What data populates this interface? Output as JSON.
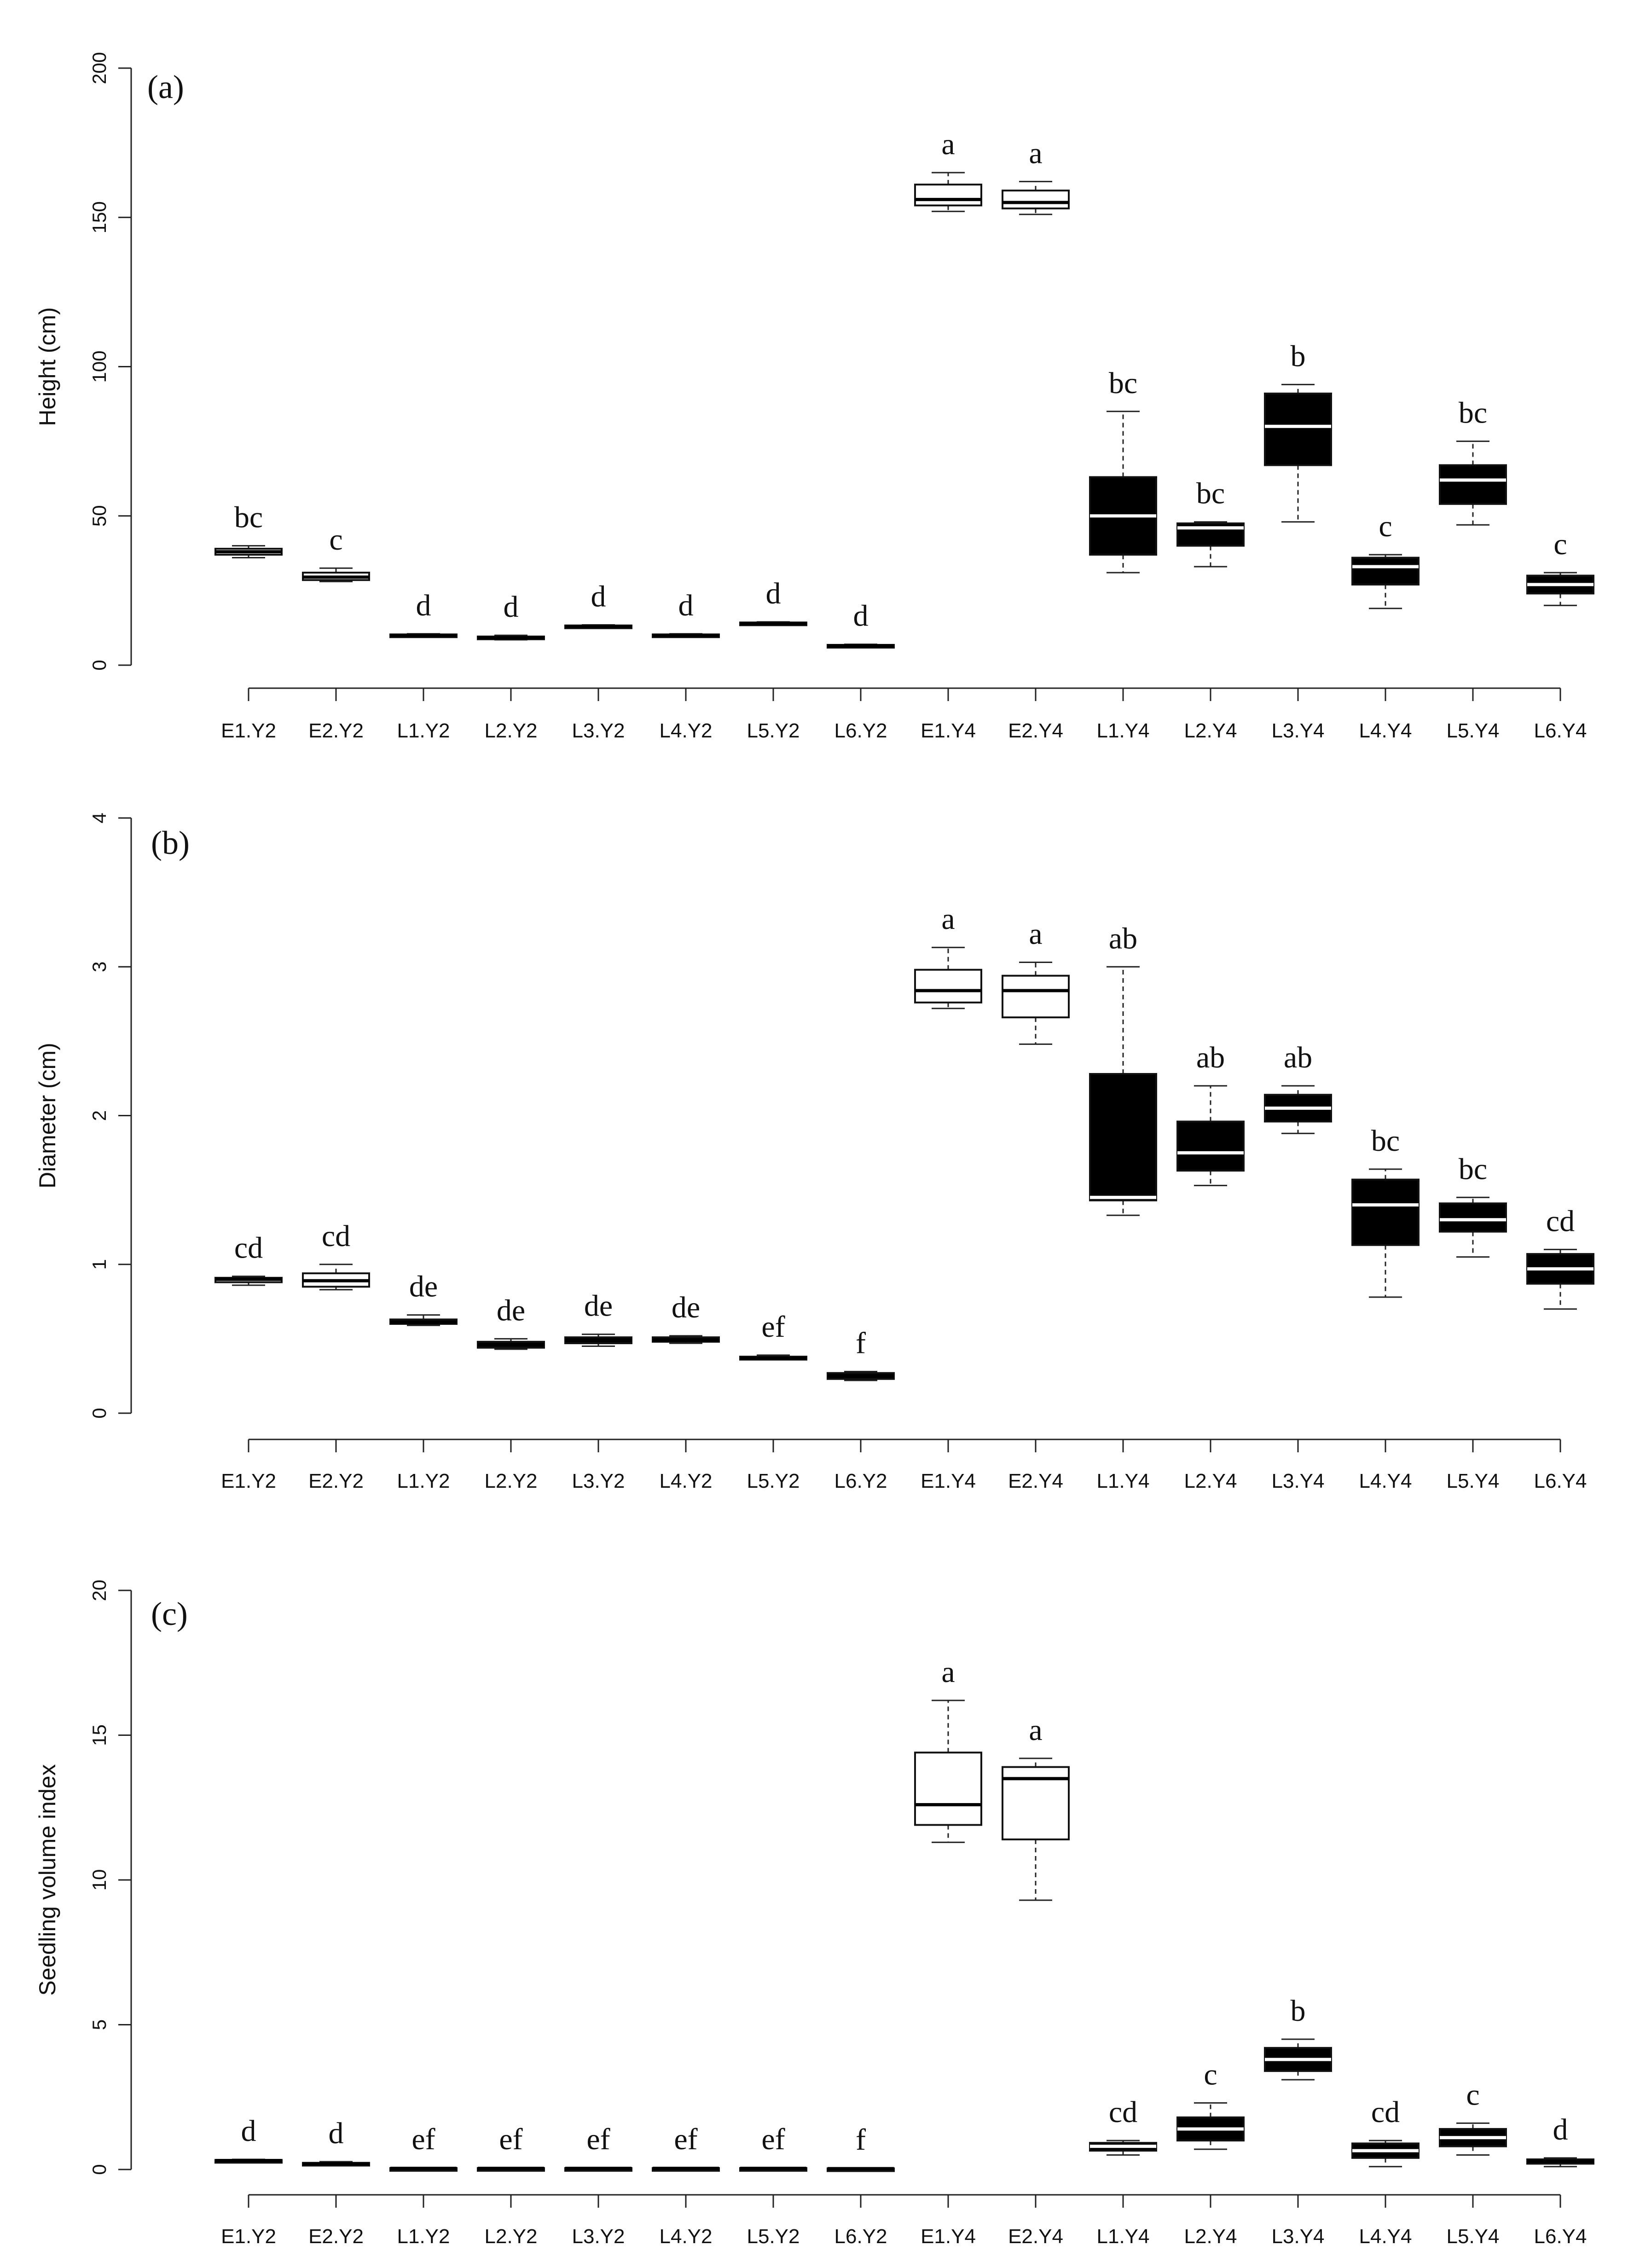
{
  "figure": {
    "description_free": true
  },
  "chart_data": [
    {
      "type": "box",
      "panel_label": "(a)",
      "ylabel": "Height (cm)",
      "ylim": [
        0,
        200
      ],
      "yticks": [
        0,
        50,
        100,
        150,
        200
      ],
      "categories": [
        "E1.Y2",
        "E2.Y2",
        "L1.Y2",
        "L2.Y2",
        "L3.Y2",
        "L4.Y2",
        "L5.Y2",
        "L6.Y2",
        "E1.Y4",
        "E2.Y4",
        "L1.Y4",
        "L2.Y4",
        "L3.Y4",
        "L4.Y4",
        "L5.Y4",
        "L6.Y4"
      ],
      "fills": [
        "white",
        "white",
        "black",
        "black",
        "black",
        "black",
        "black",
        "black",
        "white",
        "white",
        "black",
        "black",
        "black",
        "black",
        "black",
        "black"
      ],
      "boxes": [
        {
          "min": 36,
          "q1": 37,
          "median": 38,
          "q3": 39,
          "max": 40
        },
        {
          "min": 28,
          "q1": 28.5,
          "median": 29.5,
          "q3": 31,
          "max": 32.5
        },
        {
          "min": 9.5,
          "q1": 9.7,
          "median": 10,
          "q3": 10.3,
          "max": 10.5
        },
        {
          "min": 8.5,
          "q1": 8.8,
          "median": 9.2,
          "q3": 9.6,
          "max": 10
        },
        {
          "min": 12.5,
          "q1": 12.8,
          "median": 13,
          "q3": 13.3,
          "max": 13.5
        },
        {
          "min": 9.5,
          "q1": 9.7,
          "median": 10,
          "q3": 10.3,
          "max": 10.5
        },
        {
          "min": 13.5,
          "q1": 13.8,
          "median": 14,
          "q3": 14.3,
          "max": 14.5
        },
        {
          "min": 6,
          "q1": 6.2,
          "median": 6.5,
          "q3": 6.8,
          "max": 7
        },
        {
          "min": 152,
          "q1": 154,
          "median": 156,
          "q3": 161,
          "max": 165
        },
        {
          "min": 151,
          "q1": 153,
          "median": 155,
          "q3": 159,
          "max": 162
        },
        {
          "min": 31,
          "q1": 37,
          "median": 50,
          "q3": 63,
          "max": 85
        },
        {
          "min": 33,
          "q1": 40,
          "median": 46,
          "q3": 47.5,
          "max": 48
        },
        {
          "min": 48,
          "q1": 67,
          "median": 80,
          "q3": 91,
          "max": 94
        },
        {
          "min": 19,
          "q1": 27,
          "median": 33,
          "q3": 36,
          "max": 37
        },
        {
          "min": 47,
          "q1": 54,
          "median": 62,
          "q3": 67,
          "max": 75
        },
        {
          "min": 20,
          "q1": 24,
          "median": 27,
          "q3": 30,
          "max": 31
        }
      ],
      "letters": [
        "bc",
        "c",
        "d",
        "d",
        "d",
        "d",
        "d",
        "d",
        "a",
        "a",
        "bc",
        "bc",
        "b",
        "c",
        "bc",
        "c"
      ]
    },
    {
      "type": "box",
      "panel_label": "(b)",
      "ylabel": "Diameter (cm)",
      "ylim": [
        0,
        4
      ],
      "yticks": [
        0,
        1,
        2,
        3,
        4
      ],
      "categories": [
        "E1.Y2",
        "E2.Y2",
        "L1.Y2",
        "L2.Y2",
        "L3.Y2",
        "L4.Y2",
        "L5.Y2",
        "L6.Y2",
        "E1.Y4",
        "E2.Y4",
        "L1.Y4",
        "L2.Y4",
        "L3.Y4",
        "L4.Y4",
        "L5.Y4",
        "L6.Y4"
      ],
      "fills": [
        "white",
        "white",
        "black",
        "black",
        "black",
        "black",
        "black",
        "black",
        "white",
        "white",
        "black",
        "black",
        "black",
        "black",
        "black",
        "black"
      ],
      "boxes": [
        {
          "min": 0.86,
          "q1": 0.88,
          "median": 0.9,
          "q3": 0.91,
          "max": 0.92
        },
        {
          "min": 0.83,
          "q1": 0.85,
          "median": 0.89,
          "q3": 0.94,
          "max": 1.0
        },
        {
          "min": 0.59,
          "q1": 0.6,
          "median": 0.61,
          "q3": 0.63,
          "max": 0.66
        },
        {
          "min": 0.43,
          "q1": 0.44,
          "median": 0.46,
          "q3": 0.48,
          "max": 0.5
        },
        {
          "min": 0.45,
          "q1": 0.47,
          "median": 0.49,
          "q3": 0.51,
          "max": 0.53
        },
        {
          "min": 0.47,
          "q1": 0.48,
          "median": 0.49,
          "q3": 0.51,
          "max": 0.52
        },
        {
          "min": 0.36,
          "q1": 0.36,
          "median": 0.37,
          "q3": 0.38,
          "max": 0.39
        },
        {
          "min": 0.22,
          "q1": 0.23,
          "median": 0.25,
          "q3": 0.27,
          "max": 0.28
        },
        {
          "min": 2.72,
          "q1": 2.76,
          "median": 2.84,
          "q3": 2.98,
          "max": 3.13
        },
        {
          "min": 2.48,
          "q1": 2.66,
          "median": 2.84,
          "q3": 2.94,
          "max": 3.03
        },
        {
          "min": 1.33,
          "q1": 1.43,
          "median": 1.45,
          "q3": 2.28,
          "max": 3.0
        },
        {
          "min": 1.53,
          "q1": 1.63,
          "median": 1.75,
          "q3": 1.96,
          "max": 2.2
        },
        {
          "min": 1.88,
          "q1": 1.96,
          "median": 2.05,
          "q3": 2.14,
          "max": 2.2
        },
        {
          "min": 0.78,
          "q1": 1.13,
          "median": 1.4,
          "q3": 1.57,
          "max": 1.64
        },
        {
          "min": 1.05,
          "q1": 1.22,
          "median": 1.3,
          "q3": 1.41,
          "max": 1.45
        },
        {
          "min": 0.7,
          "q1": 0.87,
          "median": 0.97,
          "q3": 1.07,
          "max": 1.1
        }
      ],
      "letters": [
        "cd",
        "cd",
        "de",
        "de",
        "de",
        "de",
        "ef",
        "f",
        "a",
        "a",
        "ab",
        "ab",
        "ab",
        "bc",
        "bc",
        "cd"
      ]
    },
    {
      "type": "box",
      "panel_label": "(c)",
      "ylabel": "Seedling volume index",
      "ylim": [
        0,
        20
      ],
      "yticks": [
        0,
        5,
        10,
        15,
        20
      ],
      "categories": [
        "E1.Y2",
        "E2.Y2",
        "L1.Y2",
        "L2.Y2",
        "L3.Y2",
        "L4.Y2",
        "L5.Y2",
        "L6.Y2",
        "E1.Y4",
        "E2.Y4",
        "L1.Y4",
        "L2.Y4",
        "L3.Y4",
        "L4.Y4",
        "L5.Y4",
        "L6.Y4"
      ],
      "fills": [
        "white",
        "white",
        "black",
        "black",
        "black",
        "black",
        "black",
        "black",
        "white",
        "white",
        "black",
        "black",
        "black",
        "black",
        "black",
        "black"
      ],
      "boxes": [
        {
          "min": 0.28,
          "q1": 0.3,
          "median": 0.31,
          "q3": 0.33,
          "max": 0.35
        },
        {
          "min": 0.15,
          "q1": 0.17,
          "median": 0.2,
          "q3": 0.23,
          "max": 0.27
        },
        {
          "min": 0.02,
          "q1": 0.03,
          "median": 0.04,
          "q3": 0.05,
          "max": 0.06
        },
        {
          "min": 0.02,
          "q1": 0.03,
          "median": 0.04,
          "q3": 0.05,
          "max": 0.06
        },
        {
          "min": 0.02,
          "q1": 0.03,
          "median": 0.04,
          "q3": 0.05,
          "max": 0.06
        },
        {
          "min": 0.02,
          "q1": 0.03,
          "median": 0.04,
          "q3": 0.05,
          "max": 0.06
        },
        {
          "min": 0.02,
          "q1": 0.03,
          "median": 0.04,
          "q3": 0.05,
          "max": 0.06
        },
        {
          "min": 0.01,
          "q1": 0.02,
          "median": 0.03,
          "q3": 0.04,
          "max": 0.05
        },
        {
          "min": 11.3,
          "q1": 11.9,
          "median": 12.6,
          "q3": 14.4,
          "max": 16.2
        },
        {
          "min": 9.3,
          "q1": 11.4,
          "median": 13.5,
          "q3": 13.9,
          "max": 14.2
        },
        {
          "min": 0.5,
          "q1": 0.65,
          "median": 0.8,
          "q3": 0.92,
          "max": 1.0
        },
        {
          "min": 0.7,
          "q1": 1.0,
          "median": 1.4,
          "q3": 1.8,
          "max": 2.3
        },
        {
          "min": 3.1,
          "q1": 3.4,
          "median": 3.8,
          "q3": 4.2,
          "max": 4.5
        },
        {
          "min": 0.1,
          "q1": 0.4,
          "median": 0.65,
          "q3": 0.9,
          "max": 1.0
        },
        {
          "min": 0.5,
          "q1": 0.8,
          "median": 1.1,
          "q3": 1.4,
          "max": 1.6
        },
        {
          "min": 0.1,
          "q1": 0.2,
          "median": 0.28,
          "q3": 0.35,
          "max": 0.4
        }
      ],
      "letters": [
        "d",
        "d",
        "ef",
        "ef",
        "ef",
        "ef",
        "ef",
        "f",
        "",
        "",
        "cd",
        "c",
        "b",
        "cd",
        "c",
        "d"
      ],
      "extra_letters": [
        {
          "index": 8,
          "text": "a"
        },
        {
          "index": 9,
          "text": "a"
        }
      ]
    }
  ]
}
